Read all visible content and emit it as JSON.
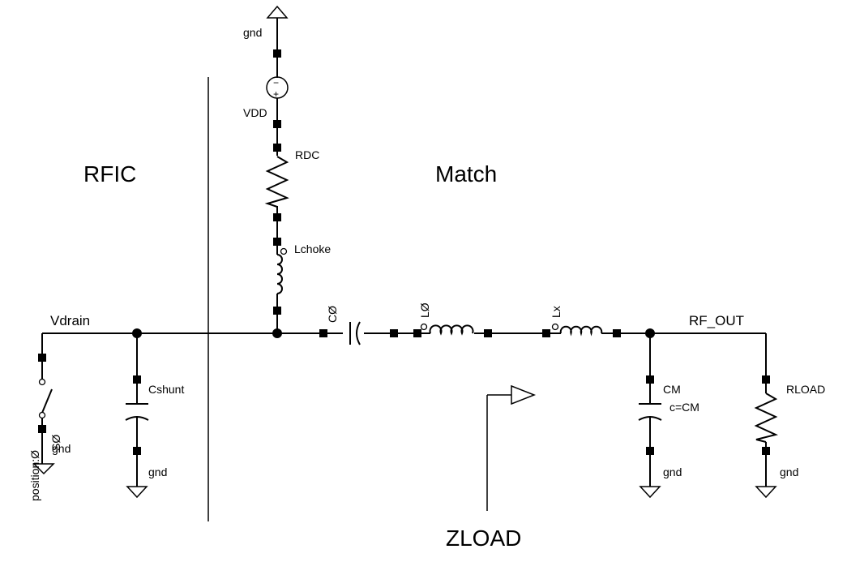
{
  "regions": {
    "rfic": "RFIC",
    "match": "Match",
    "zload": "ZLOAD"
  },
  "nets": {
    "vdrain": "Vdrain",
    "rf_out": "RF_OUT",
    "vdd": "VDD"
  },
  "components": {
    "rdc": "RDC",
    "lchoke": "Lchoke",
    "c0": "CØ",
    "l0": "LØ",
    "lx": "Lx",
    "cshunt": "Cshunt",
    "cm": "CM",
    "cm_param": "c=CM",
    "rload": "RLOAD",
    "s0": "SØ",
    "switch_param": "position:Ø"
  },
  "ground_label": "gnd",
  "source_signs": {
    "minus": "−",
    "plus": "+"
  }
}
